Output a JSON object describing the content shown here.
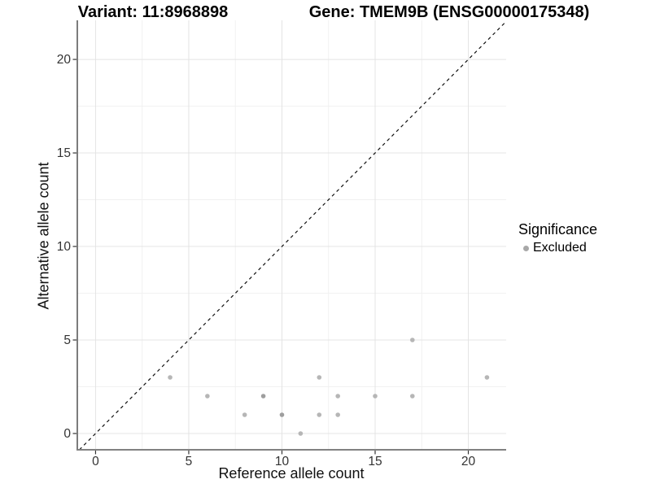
{
  "titles": {
    "variant": "Variant: 11:8968898",
    "gene": "Gene: TMEM9B (ENSG00000175348)"
  },
  "legend": {
    "title": "Significance",
    "items": [
      {
        "label": "Excluded",
        "color": "#a8a8a8"
      }
    ]
  },
  "chart_data": {
    "type": "scatter",
    "title": "Variant: 11:8968898  /  Gene: TMEM9B (ENSG00000175348)",
    "xlabel": "Reference allele count",
    "ylabel": "Alternative allele count",
    "xlim": [
      -0.98,
      22.03
    ],
    "ylim": [
      -0.87,
      22.09
    ],
    "x_ticks": [
      0,
      5,
      10,
      15,
      20
    ],
    "y_ticks": [
      0,
      5,
      10,
      15,
      20
    ],
    "minor_x": [
      2.5,
      7.5,
      12.5,
      17.5
    ],
    "minor_y": [
      2.5,
      7.5,
      12.5,
      17.5
    ],
    "grid": true,
    "legend_position": "right",
    "series": [
      {
        "name": "Excluded",
        "points": [
          {
            "x": 4,
            "y": 3
          },
          {
            "x": 6,
            "y": 2
          },
          {
            "x": 8,
            "y": 1
          },
          {
            "x": 9,
            "y": 2,
            "dark": true
          },
          {
            "x": 10,
            "y": 1,
            "dark": true
          },
          {
            "x": 11,
            "y": 0
          },
          {
            "x": 12,
            "y": 1
          },
          {
            "x": 12,
            "y": 3
          },
          {
            "x": 13,
            "y": 1
          },
          {
            "x": 13,
            "y": 2
          },
          {
            "x": 15,
            "y": 2
          },
          {
            "x": 17,
            "y": 2
          },
          {
            "x": 17,
            "y": 5
          },
          {
            "x": 21,
            "y": 3
          }
        ]
      }
    ],
    "reference_line": {
      "type": "identity",
      "label": "y = x",
      "style": "dashed"
    },
    "colors": {
      "point": "#b6b6b6",
      "point_overlap": "#9e9e9e",
      "major_grid": "#e4e4e4",
      "minor_grid": "#f1f1f1",
      "y_axis_line": "#262626",
      "x_axis_line": "#818181",
      "tick": "#333333",
      "tick_label": "#333333",
      "diagonal": "#111111"
    }
  }
}
